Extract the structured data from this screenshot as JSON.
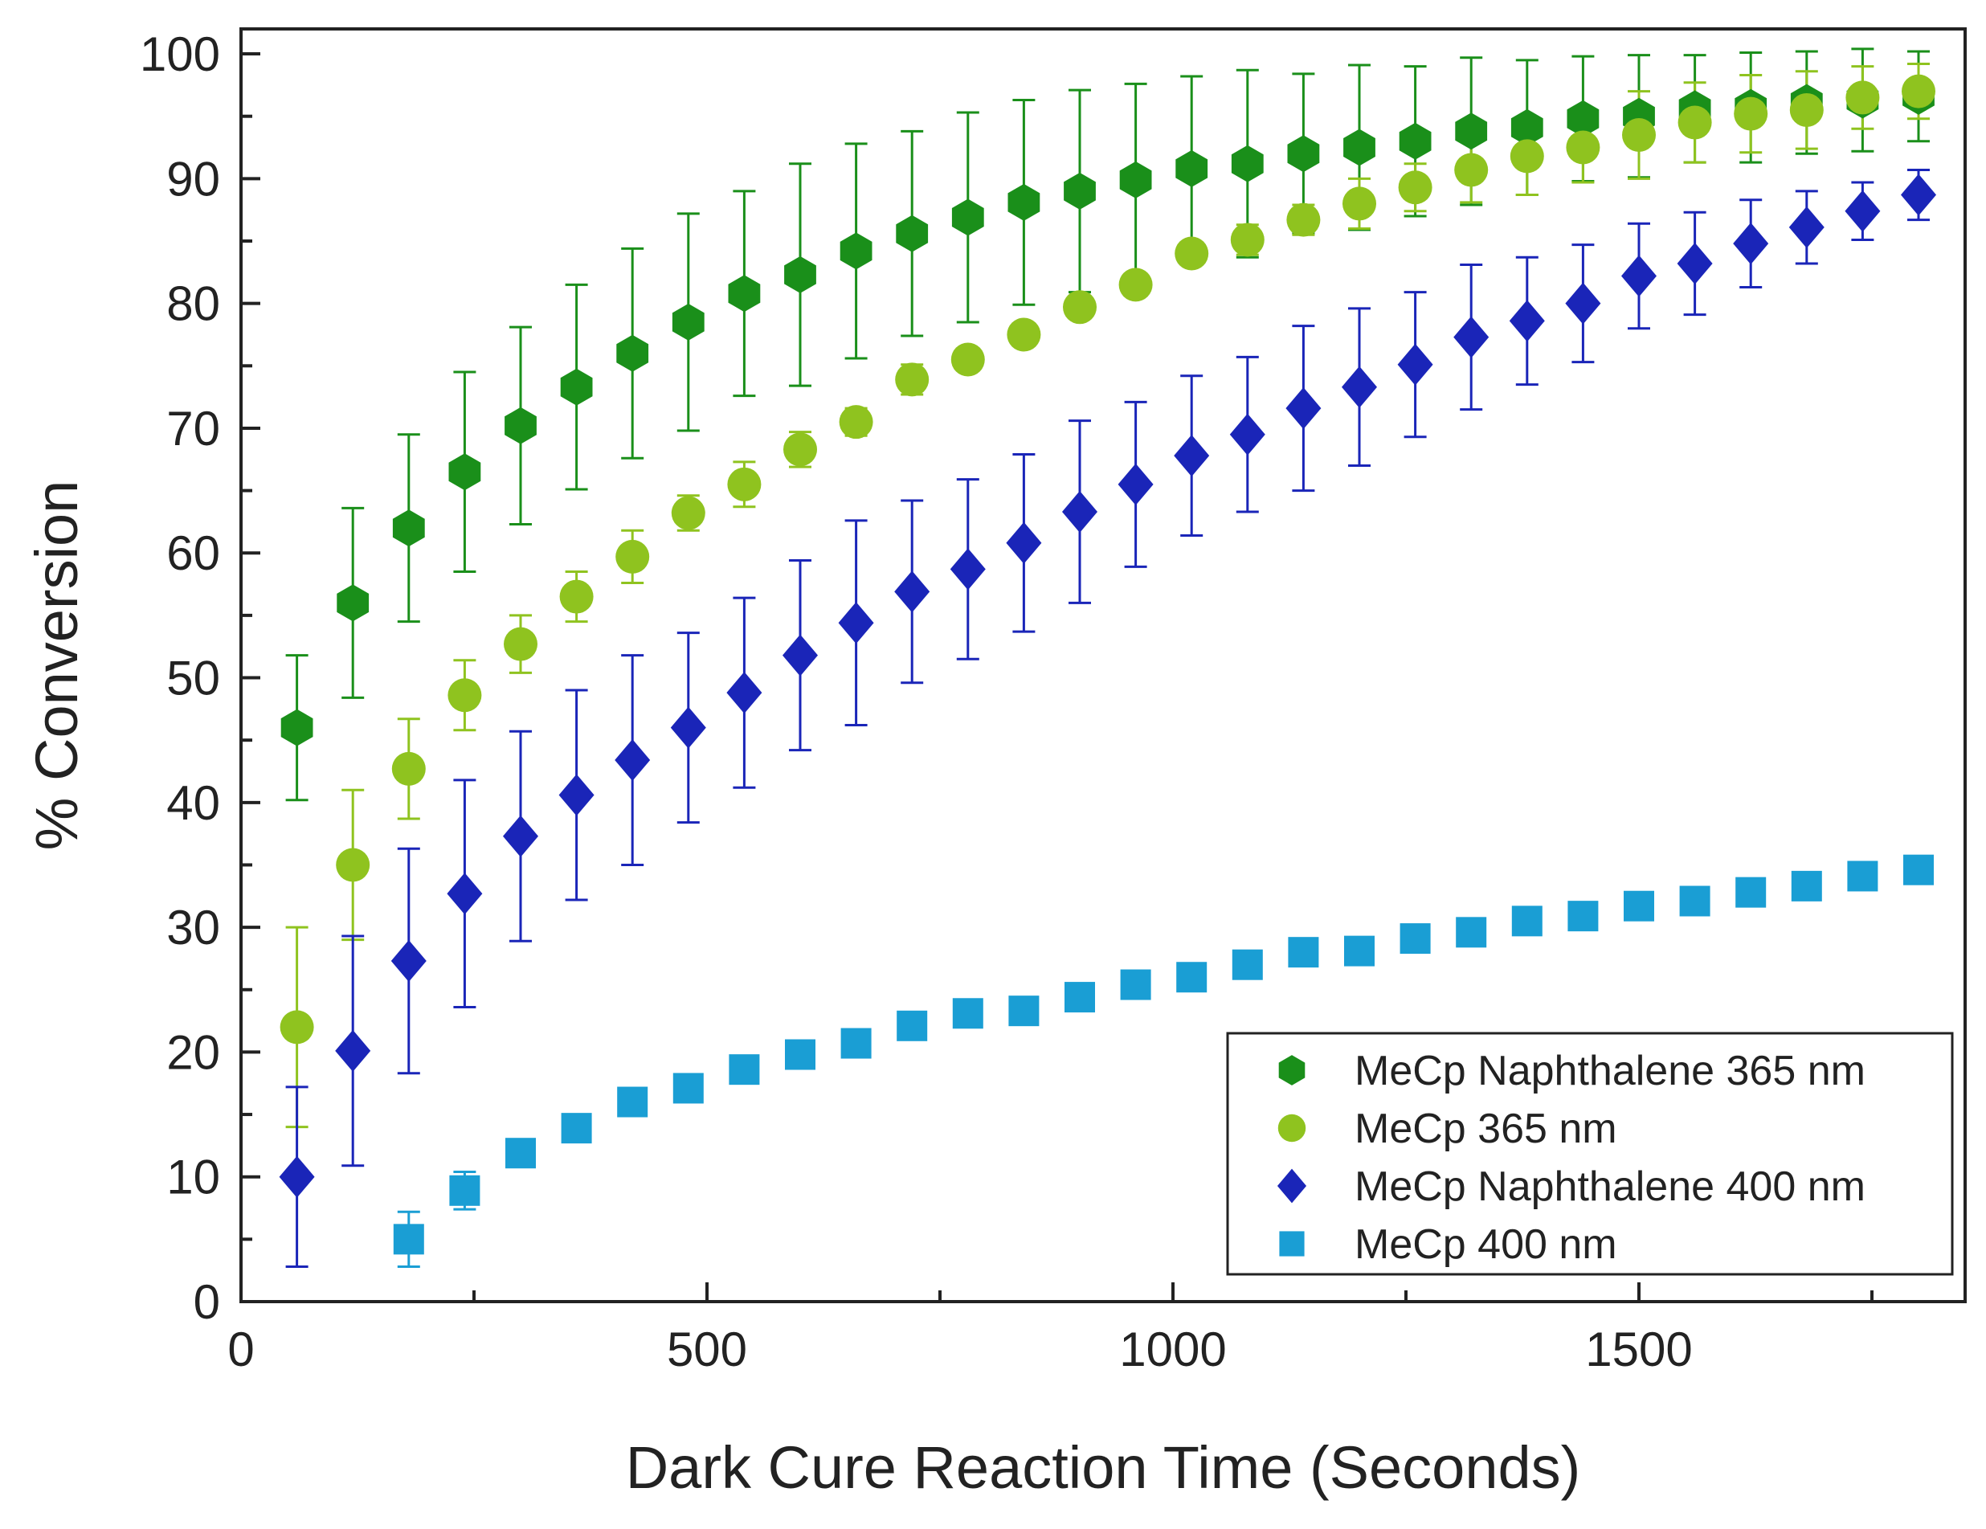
{
  "chart_data": {
    "type": "scatter",
    "title": "",
    "xlabel": "Dark Cure Reaction Time (Seconds)",
    "ylabel": "% Conversion",
    "xlim": [
      0,
      1850
    ],
    "ylim": [
      0,
      102
    ],
    "xticks": [
      0,
      500,
      1000,
      1500
    ],
    "yticks": [
      0,
      10,
      20,
      30,
      40,
      50,
      60,
      70,
      80,
      90,
      100
    ],
    "grid": false,
    "legend_position": "bottom-right",
    "series": [
      {
        "name": "MeCp Naphthalene 365 nm",
        "marker": "hexagon",
        "color": "#1a8f1a",
        "x": [
          60,
          120,
          180,
          240,
          300,
          360,
          420,
          480,
          540,
          600,
          660,
          720,
          780,
          840,
          900,
          960,
          1020,
          1080,
          1140,
          1200,
          1260,
          1320,
          1380,
          1440,
          1500,
          1560,
          1620,
          1680,
          1740,
          1800
        ],
        "y": [
          46,
          56,
          62,
          66.5,
          70.2,
          73.3,
          76,
          78.5,
          80.8,
          82.3,
          84.2,
          85.6,
          86.9,
          88.1,
          89,
          89.9,
          90.8,
          91.2,
          92,
          92.5,
          93,
          93.8,
          94.1,
          94.8,
          95,
          95.6,
          95.7,
          96.1,
          96.3,
          96.6
        ],
        "yerr": [
          5.8,
          7.6,
          7.5,
          8,
          7.9,
          8.2,
          8.4,
          8.7,
          8.2,
          8.9,
          8.6,
          8.2,
          8.4,
          8.2,
          8.1,
          7.7,
          7.4,
          7.5,
          6.4,
          6.6,
          6,
          5.9,
          5.4,
          5,
          4.9,
          4.3,
          4.4,
          4.1,
          4.1,
          3.6
        ]
      },
      {
        "name": "MeCp 365 nm",
        "marker": "circle",
        "color": "#8fc31f",
        "x": [
          60,
          120,
          180,
          240,
          300,
          360,
          420,
          480,
          540,
          600,
          660,
          720,
          780,
          840,
          900,
          960,
          1020,
          1080,
          1140,
          1200,
          1260,
          1320,
          1380,
          1440,
          1500,
          1560,
          1620,
          1680,
          1740,
          1800
        ],
        "y": [
          22,
          35,
          42.7,
          48.6,
          52.7,
          56.5,
          59.7,
          63.2,
          65.5,
          68.3,
          70.5,
          73.9,
          75.5,
          77.5,
          79.7,
          81.5,
          84,
          85.1,
          86.7,
          88,
          89.3,
          90.7,
          91.8,
          92.5,
          93.5,
          94.5,
          95.2,
          95.5,
          96.5,
          97
        ],
        "yerr": [
          8,
          6,
          4,
          2.8,
          2.3,
          2,
          2.1,
          1.4,
          1.8,
          1.4,
          1.1,
          1.2,
          0.7,
          0.6,
          0.6,
          0.6,
          0.5,
          1.2,
          1.2,
          2,
          1.9,
          2.6,
          3.1,
          2.8,
          3.5,
          3.2,
          3.1,
          3.1,
          2.5,
          2.2
        ]
      },
      {
        "name": "MeCp Naphthalene 400 nm",
        "marker": "diamond",
        "color": "#1a25b8",
        "x": [
          60,
          120,
          180,
          240,
          300,
          360,
          420,
          480,
          540,
          600,
          660,
          720,
          780,
          840,
          900,
          960,
          1020,
          1080,
          1140,
          1200,
          1260,
          1320,
          1380,
          1440,
          1500,
          1560,
          1620,
          1680,
          1740,
          1800
        ],
        "y": [
          10,
          20.1,
          27.3,
          32.7,
          37.3,
          40.6,
          43.4,
          46,
          48.8,
          51.8,
          54.4,
          56.9,
          58.7,
          60.8,
          63.3,
          65.5,
          67.8,
          69.5,
          71.6,
          73.3,
          75.1,
          77.3,
          78.6,
          80,
          82.2,
          83.2,
          84.8,
          86.1,
          87.4,
          88.7
        ],
        "yerr": [
          7.2,
          9.2,
          9,
          9.1,
          8.4,
          8.4,
          8.4,
          7.6,
          7.6,
          7.6,
          8.2,
          7.3,
          7.2,
          7.1,
          7.3,
          6.6,
          6.4,
          6.2,
          6.6,
          6.3,
          5.8,
          5.8,
          5.1,
          4.7,
          4.2,
          4.1,
          3.5,
          2.9,
          2.3,
          2
        ]
      },
      {
        "name": "MeCp 400 nm",
        "marker": "square",
        "color": "#1a9ed4",
        "x": [
          180,
          240,
          300,
          360,
          420,
          480,
          540,
          600,
          660,
          720,
          780,
          840,
          900,
          960,
          1020,
          1080,
          1140,
          1200,
          1260,
          1320,
          1380,
          1440,
          1500,
          1560,
          1620,
          1680,
          1740,
          1800
        ],
        "y": [
          5,
          8.9,
          11.9,
          13.9,
          16,
          17.1,
          18.6,
          19.8,
          20.7,
          22.1,
          23.1,
          23.3,
          24.4,
          25.4,
          26,
          27,
          28,
          28.1,
          29.1,
          29.6,
          30.5,
          30.9,
          31.7,
          32.1,
          32.8,
          33.3,
          34.1,
          34.6
        ],
        "yerr": [
          2.2,
          1.5,
          0.5,
          0.4,
          0.3,
          0.3,
          0.3,
          0.3,
          0.3,
          0.3,
          0.3,
          0.3,
          0.3,
          0.3,
          0.3,
          0.3,
          0.3,
          0.3,
          1,
          0.5,
          0.3,
          0.3,
          0.3,
          0.3,
          0.3,
          0.3,
          0.3,
          0.3
        ]
      }
    ]
  }
}
